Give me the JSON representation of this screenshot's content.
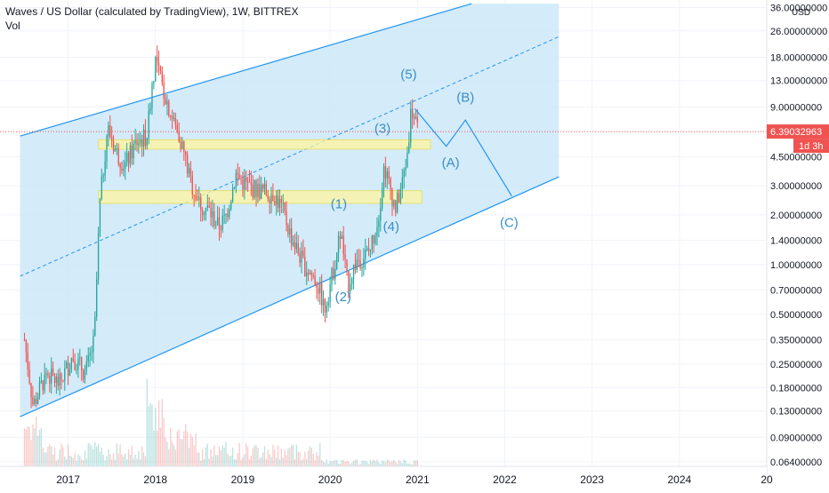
{
  "header": {
    "title": "Waves / US Dollar (calculated by TradingView), 1W, BITTREX",
    "vol_label": "Vol"
  },
  "axis": {
    "currency": "USD",
    "price_badge": "6.39032963",
    "countdown_badge": "1d 3h"
  },
  "colors": {
    "up": "#26a69a",
    "down": "#ef5350",
    "channel_fill": "#cde8f8",
    "channel_line": "#2196f3",
    "wave_label": "#3a8fc8",
    "zone_fill": "#fff59d",
    "price_line": "#ef5350"
  },
  "chart_data": {
    "type": "candlestick",
    "y_scale": "log",
    "ylim": [
      0.06,
      40
    ],
    "x_tick_labels": [
      "2017",
      "2018",
      "2019",
      "2020",
      "2021",
      "2022",
      "2023",
      "2024",
      "20"
    ],
    "y_tick_labels": [
      "36.00000000",
      "26.00000000",
      "18.00000000",
      "13.00000000",
      "9.00000000",
      "6.39032963",
      "4.50000000",
      "3.00000000",
      "2.00000000",
      "1.40000000",
      "1.00000000",
      "0.70000000",
      "0.50000000",
      "0.35000000",
      "0.25000000",
      "0.18000000",
      "0.13000000",
      "0.09000000",
      "0.06400000"
    ],
    "last_price": 6.39032963,
    "price_path": [
      {
        "t": 2016.5,
        "p": 0.35
      },
      {
        "t": 2016.6,
        "p": 0.14
      },
      {
        "t": 2016.75,
        "p": 0.22
      },
      {
        "t": 2016.9,
        "p": 0.19
      },
      {
        "t": 2017.05,
        "p": 0.28
      },
      {
        "t": 2017.2,
        "p": 0.22
      },
      {
        "t": 2017.3,
        "p": 0.35
      },
      {
        "t": 2017.36,
        "p": 2.2
      },
      {
        "t": 2017.45,
        "p": 6.8
      },
      {
        "t": 2017.55,
        "p": 4.8
      },
      {
        "t": 2017.65,
        "p": 4.0
      },
      {
        "t": 2017.78,
        "p": 5.5
      },
      {
        "t": 2017.9,
        "p": 6.0
      },
      {
        "t": 2017.96,
        "p": 12.0
      },
      {
        "t": 2018.0,
        "p": 17.5
      },
      {
        "t": 2018.08,
        "p": 12.0
      },
      {
        "t": 2018.2,
        "p": 7.5
      },
      {
        "t": 2018.3,
        "p": 5.5
      },
      {
        "t": 2018.4,
        "p": 3.2
      },
      {
        "t": 2018.5,
        "p": 2.4
      },
      {
        "t": 2018.62,
        "p": 2.1
      },
      {
        "t": 2018.72,
        "p": 1.7
      },
      {
        "t": 2018.8,
        "p": 1.9
      },
      {
        "t": 2018.92,
        "p": 3.5
      },
      {
        "t": 2019.05,
        "p": 3.0
      },
      {
        "t": 2019.2,
        "p": 2.8
      },
      {
        "t": 2019.35,
        "p": 2.7
      },
      {
        "t": 2019.45,
        "p": 2.2
      },
      {
        "t": 2019.55,
        "p": 1.5
      },
      {
        "t": 2019.7,
        "p": 1.0
      },
      {
        "t": 2019.85,
        "p": 0.78
      },
      {
        "t": 2019.94,
        "p": 0.55
      },
      {
        "t": 2020.05,
        "p": 1.0
      },
      {
        "t": 2020.12,
        "p": 1.6
      },
      {
        "t": 2020.2,
        "p": 0.75
      },
      {
        "t": 2020.3,
        "p": 1.05
      },
      {
        "t": 2020.45,
        "p": 1.2
      },
      {
        "t": 2020.55,
        "p": 1.9
      },
      {
        "t": 2020.62,
        "p": 4.0
      },
      {
        "t": 2020.68,
        "p": 3.0
      },
      {
        "t": 2020.75,
        "p": 2.2
      },
      {
        "t": 2020.82,
        "p": 3.0
      },
      {
        "t": 2020.88,
        "p": 4.5
      },
      {
        "t": 2020.93,
        "p": 9.0
      },
      {
        "t": 2021.0,
        "p": 6.39
      }
    ],
    "channel": {
      "lower": [
        {
          "t": 2016.45,
          "p": 0.12
        },
        {
          "t": 2022.62,
          "p": 3.4
        }
      ],
      "upper": [
        {
          "t": 2016.45,
          "p": 6.0
        },
        {
          "t": 2021.62,
          "p": 38.0
        }
      ],
      "mid": [
        {
          "t": 2016.45,
          "p": 0.85
        },
        {
          "t": 2022.62,
          "p": 24.0
        }
      ]
    },
    "zones": [
      {
        "t0": 2017.35,
        "t1": 2021.15,
        "p_low": 5.0,
        "p_high": 5.7
      },
      {
        "t0": 2017.35,
        "t1": 2021.05,
        "p_low": 2.35,
        "p_high": 2.8
      }
    ],
    "projection": [
      {
        "t": 2020.97,
        "p": 8.8
      },
      {
        "t": 2021.33,
        "p": 5.2
      },
      {
        "t": 2021.55,
        "p": 7.5
      },
      {
        "t": 2022.08,
        "p": 2.6
      }
    ],
    "wave_labels": [
      {
        "text": "(1)",
        "t": 2020.1,
        "p": 2.3
      },
      {
        "text": "(2)",
        "t": 2020.15,
        "p": 0.63
      },
      {
        "text": "(3)",
        "t": 2020.6,
        "p": 6.6
      },
      {
        "text": "(4)",
        "t": 2020.7,
        "p": 1.68
      },
      {
        "text": "(5)",
        "t": 2020.9,
        "p": 14.0
      },
      {
        "text": "(A)",
        "t": 2021.38,
        "p": 4.1
      },
      {
        "text": "(B)",
        "t": 2021.55,
        "p": 10.2
      },
      {
        "text": "(C)",
        "t": 2022.05,
        "p": 1.78
      }
    ]
  }
}
